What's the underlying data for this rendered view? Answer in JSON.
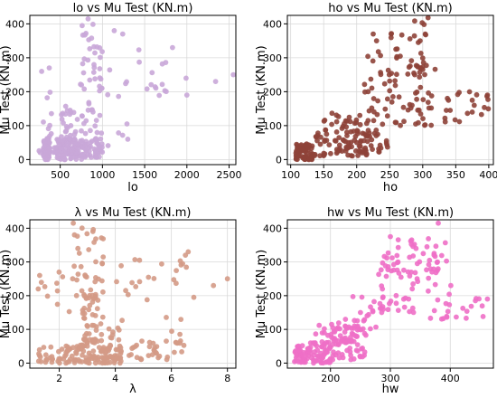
{
  "chart_data": [
    {
      "type": "scatter",
      "title": "lo vs Mu Test (KN.m)",
      "xlabel": "lo",
      "ylabel": "Mu Test (KN.m)",
      "xlim": [
        140,
        2580
      ],
      "ylim": [
        -15,
        425
      ],
      "xticks": [
        500,
        1000,
        1500,
        2000,
        2500
      ],
      "yticks": [
        0,
        100,
        200,
        300,
        400
      ],
      "grid": true,
      "color": "#c9a7d8",
      "point_groups": [
        {
          "x": [
            300,
            380
          ],
          "y": [
            0,
            60
          ],
          "n": 70
        },
        {
          "x": [
            450,
            760
          ],
          "y": [
            0,
            60
          ],
          "n": 90
        },
        {
          "x": [
            760,
            1000
          ],
          "y": [
            5,
            60
          ],
          "n": 35
        },
        {
          "x": [
            200,
            1000
          ],
          "y": [
            20,
            60
          ],
          "n": 40
        },
        {
          "x": [
            300,
            400
          ],
          "y": [
            60,
            240
          ],
          "n": 10
        },
        {
          "x": [
            500,
            700
          ],
          "y": [
            60,
            160
          ],
          "n": 25
        },
        {
          "x": [
            700,
            1000
          ],
          "y": [
            60,
            330
          ],
          "n": 45
        },
        {
          "x": [
            750,
            950
          ],
          "y": [
            330,
            415
          ],
          "n": 8
        },
        {
          "x": [
            1000,
            1800
          ],
          "y": [
            180,
            330
          ],
          "n": 18
        },
        {
          "x": [
            1000,
            1300
          ],
          "y": [
            40,
            140
          ],
          "n": 4
        }
      ],
      "points": [
        [
          2550,
          250
        ],
        [
          2340,
          230
        ],
        [
          2000,
          190
        ],
        [
          1990,
          240
        ],
        [
          1240,
          370
        ],
        [
          1830,
          330
        ],
        [
          1300,
          60
        ],
        [
          280,
          260
        ],
        [
          370,
          270
        ],
        [
          830,
          415
        ],
        [
          760,
          395
        ],
        [
          1140,
          380
        ]
      ]
    },
    {
      "type": "scatter",
      "title": "ho vs Mu Test (KN.m)",
      "xlabel": "ho",
      "ylabel": "Mu Test (KN.m)",
      "xlim": [
        95,
        407
      ],
      "ylim": [
        -15,
        425
      ],
      "xticks": [
        100,
        150,
        200,
        250,
        300,
        350,
        400
      ],
      "yticks": [
        0,
        100,
        200,
        300,
        400
      ],
      "grid": true,
      "color": "#8e4338",
      "point_groups": [
        {
          "x": [
            108,
            135
          ],
          "y": [
            0,
            50
          ],
          "n": 70
        },
        {
          "x": [
            135,
            220
          ],
          "y": [
            10,
            90
          ],
          "n": 70
        },
        {
          "x": [
            150,
            210
          ],
          "y": [
            90,
            140
          ],
          "n": 20
        },
        {
          "x": [
            200,
            250
          ],
          "y": [
            20,
            90
          ],
          "n": 30
        },
        {
          "x": [
            210,
            300
          ],
          "y": [
            100,
            330
          ],
          "n": 60
        },
        {
          "x": [
            250,
            310
          ],
          "y": [
            250,
            415
          ],
          "n": 30
        },
        {
          "x": [
            300,
            320
          ],
          "y": [
            100,
            300
          ],
          "n": 12
        },
        {
          "x": [
            330,
            360
          ],
          "y": [
            110,
            200
          ],
          "n": 10
        },
        {
          "x": [
            360,
            400
          ],
          "y": [
            130,
            200
          ],
          "n": 8
        }
      ],
      "points": [
        [
          398,
          190
        ],
        [
          375,
          175
        ],
        [
          375,
          140
        ],
        [
          378,
          160
        ],
        [
          308,
          418
        ],
        [
          296,
          350
        ],
        [
          225,
          370
        ],
        [
          230,
          350
        ]
      ]
    },
    {
      "type": "scatter",
      "title": "λ vs Mu Test (KN.m)",
      "xlabel": "λ",
      "ylabel": "Mu Test (KN.m)",
      "xlim": [
        0.95,
        8.3
      ],
      "ylim": [
        -15,
        425
      ],
      "xticks": [
        2,
        4,
        6,
        8
      ],
      "yticks": [
        0,
        100,
        200,
        300,
        400
      ],
      "grid": true,
      "color": "#d49a86",
      "point_groups": [
        {
          "x": [
            1.2,
            2.0
          ],
          "y": [
            0,
            50
          ],
          "n": 20
        },
        {
          "x": [
            2.0,
            4.2
          ],
          "y": [
            0,
            60
          ],
          "n": 110
        },
        {
          "x": [
            2.8,
            3.4
          ],
          "y": [
            60,
            200
          ],
          "n": 45
        },
        {
          "x": [
            2.5,
            3.6
          ],
          "y": [
            200,
            415
          ],
          "n": 35
        },
        {
          "x": [
            4.0,
            6.5
          ],
          "y": [
            10,
            70
          ],
          "n": 40
        },
        {
          "x": [
            1.2,
            2.6
          ],
          "y": [
            150,
            280
          ],
          "n": 10
        },
        {
          "x": [
            4.0,
            6.6
          ],
          "y": [
            180,
            330
          ],
          "n": 20
        },
        {
          "x": [
            5.8,
            6.5
          ],
          "y": [
            60,
            150
          ],
          "n": 6
        },
        {
          "x": [
            3.4,
            4.4
          ],
          "y": [
            60,
            160
          ],
          "n": 12
        }
      ],
      "points": [
        [
          8.0,
          250
        ],
        [
          7.5,
          230
        ],
        [
          6.8,
          195
        ],
        [
          1.3,
          260
        ],
        [
          1.25,
          220
        ],
        [
          2.5,
          415
        ],
        [
          3.2,
          390
        ],
        [
          6.6,
          330
        ],
        [
          6.5,
          320
        ]
      ]
    },
    {
      "type": "scatter",
      "title": "hw vs Mu Test (KN.m)",
      "xlabel": "hw",
      "ylabel": "Mu Test (KN.m)",
      "xlim": [
        128,
        472
      ],
      "ylim": [
        -15,
        425
      ],
      "xticks": [
        200,
        300,
        400
      ],
      "yticks": [
        0,
        100,
        200,
        300,
        400
      ],
      "grid": true,
      "color": "#ee6fc6",
      "point_groups": [
        {
          "x": [
            140,
            200
          ],
          "y": [
            0,
            60
          ],
          "n": 90
        },
        {
          "x": [
            200,
            260
          ],
          "y": [
            10,
            110
          ],
          "n": 70
        },
        {
          "x": [
            170,
            240
          ],
          "y": [
            60,
            130
          ],
          "n": 25
        },
        {
          "x": [
            230,
            290
          ],
          "y": [
            100,
            200
          ],
          "n": 20
        },
        {
          "x": [
            280,
            340
          ],
          "y": [
            150,
            320
          ],
          "n": 40
        },
        {
          "x": [
            290,
            380
          ],
          "y": [
            250,
            370
          ],
          "n": 30
        },
        {
          "x": [
            340,
            400
          ],
          "y": [
            120,
            300
          ],
          "n": 15
        },
        {
          "x": [
            360,
            400
          ],
          "y": [
            300,
            415
          ],
          "n": 8
        },
        {
          "x": [
            370,
            460
          ],
          "y": [
            130,
            200
          ],
          "n": 10
        }
      ],
      "points": [
        [
          462,
          190
        ],
        [
          442,
          185
        ],
        [
          401,
          230
        ],
        [
          380,
          415
        ],
        [
          300,
          375
        ],
        [
          225,
          130
        ],
        [
          250,
          150
        ]
      ]
    }
  ]
}
